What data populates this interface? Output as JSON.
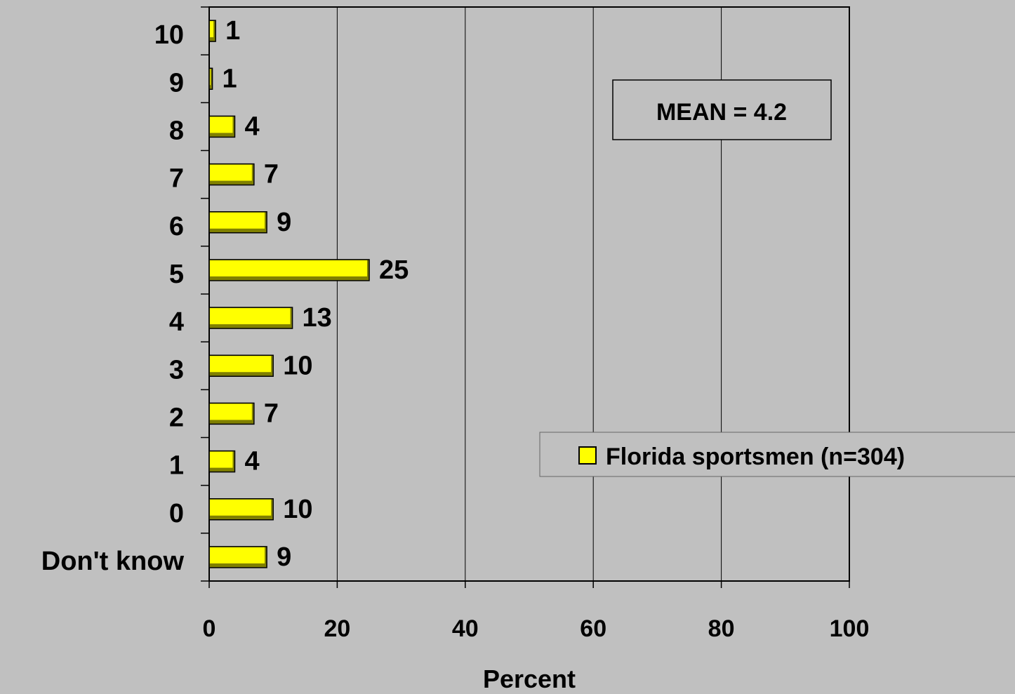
{
  "chart_data": {
    "type": "bar",
    "orientation": "horizontal",
    "categories": [
      "10",
      "9",
      "8",
      "7",
      "6",
      "5",
      "4",
      "3",
      "2",
      "1",
      "0",
      "Don't know"
    ],
    "series": [
      {
        "name": "Florida sportsmen (n=304)",
        "values": [
          1,
          0.5,
          4,
          7,
          9,
          25,
          13,
          10,
          7,
          4,
          10,
          9
        ],
        "labels": [
          "1",
          "1",
          "4",
          "7",
          "9",
          "25",
          "13",
          "10",
          "7",
          "4",
          "10",
          "9"
        ]
      }
    ],
    "xlim": [
      0,
      100
    ],
    "x_ticks": [
      "0",
      "20",
      "40",
      "60",
      "80",
      "100"
    ],
    "xlabel": "Percent",
    "ylabel": "",
    "annotation": "MEAN = 4.2",
    "legend_position": "right",
    "grid": "vertical",
    "colors": {
      "background": "#c0c0c0",
      "bar_fill": "#ffff00",
      "bar_shadow": "#808000",
      "outline": "#000000"
    }
  }
}
